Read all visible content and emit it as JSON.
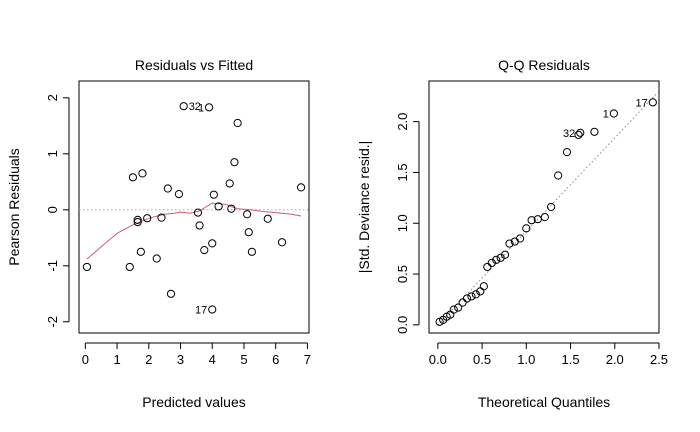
{
  "chart_data": [
    {
      "type": "scatter",
      "title": "Residuals vs Fitted",
      "xlabel": "Predicted values",
      "ylabel": "Pearson Residuals",
      "xlim": [
        -0.2,
        7.05
      ],
      "ylim": [
        -2.2,
        2.3
      ],
      "xticks": [
        0,
        1,
        2,
        3,
        4,
        5,
        6,
        7
      ],
      "yticks": [
        -2,
        -1,
        0,
        1,
        2
      ],
      "grid": false,
      "reference_line": {
        "y": 0,
        "style": "dotted",
        "color": "#aaaaaa"
      },
      "points": [
        {
          "x": 0.05,
          "y": -1.02
        },
        {
          "x": 1.4,
          "y": -1.02
        },
        {
          "x": 1.5,
          "y": 0.58
        },
        {
          "x": 1.65,
          "y": -0.18
        },
        {
          "x": 1.65,
          "y": -0.22
        },
        {
          "x": 1.75,
          "y": -0.75
        },
        {
          "x": 1.8,
          "y": 0.65
        },
        {
          "x": 1.95,
          "y": -0.15
        },
        {
          "x": 2.25,
          "y": -0.87
        },
        {
          "x": 2.4,
          "y": -0.14
        },
        {
          "x": 2.6,
          "y": 0.38
        },
        {
          "x": 2.7,
          "y": -1.5
        },
        {
          "x": 2.95,
          "y": 0.28
        },
        {
          "x": 3.1,
          "y": 1.85
        },
        {
          "x": 3.55,
          "y": -0.05
        },
        {
          "x": 3.6,
          "y": -0.28
        },
        {
          "x": 3.75,
          "y": -0.72
        },
        {
          "x": 3.9,
          "y": 1.83
        },
        {
          "x": 4.0,
          "y": -1.78
        },
        {
          "x": 4.0,
          "y": -0.6
        },
        {
          "x": 4.05,
          "y": 0.27
        },
        {
          "x": 4.2,
          "y": 0.06
        },
        {
          "x": 4.55,
          "y": 0.47
        },
        {
          "x": 4.6,
          "y": 0.02
        },
        {
          "x": 4.7,
          "y": 0.85
        },
        {
          "x": 4.8,
          "y": 1.55
        },
        {
          "x": 5.1,
          "y": -0.08
        },
        {
          "x": 5.15,
          "y": -0.4
        },
        {
          "x": 5.25,
          "y": -0.75
        },
        {
          "x": 5.75,
          "y": -0.16
        },
        {
          "x": 6.2,
          "y": -0.58
        },
        {
          "x": 6.8,
          "y": 0.4
        }
      ],
      "point_labels": [
        {
          "text": "32",
          "x": 3.1,
          "y": 1.85,
          "side": "right"
        },
        {
          "text": "1",
          "x": 3.9,
          "y": 1.83,
          "side": "left"
        },
        {
          "text": "17",
          "x": 4.0,
          "y": -1.78,
          "side": "left"
        }
      ],
      "smooth_line": {
        "color": "#d05a6e",
        "x": [
          0.05,
          0.5,
          1.0,
          1.5,
          2.0,
          2.5,
          2.8,
          3.0,
          3.3,
          3.6,
          4.0,
          4.4,
          4.8,
          5.2,
          5.6,
          6.0,
          6.5,
          6.8
        ],
        "y": [
          -0.88,
          -0.66,
          -0.42,
          -0.27,
          -0.15,
          -0.08,
          -0.06,
          -0.04,
          -0.06,
          -0.02,
          0.12,
          0.1,
          0.02,
          0.0,
          -0.03,
          -0.05,
          -0.08,
          -0.11
        ]
      }
    },
    {
      "type": "scatter",
      "title": "Q-Q Residuals",
      "xlabel": "Theoretical Quantiles",
      "ylabel": "|Std. Deviance resid.|",
      "xlim": [
        -0.1,
        2.5
      ],
      "ylim": [
        -0.08,
        2.4
      ],
      "xticks": [
        0.0,
        0.5,
        1.0,
        1.5,
        2.0,
        2.5
      ],
      "xtick_labels": [
        "0.0",
        "0.5",
        "1.0",
        "1.5",
        "2.0",
        "2.5"
      ],
      "yticks": [
        0.0,
        0.5,
        1.0,
        1.5,
        2.0
      ],
      "ytick_labels": [
        "0.0",
        "0.5",
        "1.0",
        "1.5",
        "2.0"
      ],
      "grid": false,
      "reference_line": {
        "x": [
          0.0,
          2.5
        ],
        "y": [
          0.0,
          2.3
        ],
        "style": "dotted",
        "color": "#888888"
      },
      "points": [
        {
          "x": 0.02,
          "y": 0.03
        },
        {
          "x": 0.06,
          "y": 0.05
        },
        {
          "x": 0.1,
          "y": 0.08
        },
        {
          "x": 0.14,
          "y": 0.1
        },
        {
          "x": 0.18,
          "y": 0.15
        },
        {
          "x": 0.23,
          "y": 0.17
        },
        {
          "x": 0.28,
          "y": 0.22
        },
        {
          "x": 0.33,
          "y": 0.26
        },
        {
          "x": 0.38,
          "y": 0.28
        },
        {
          "x": 0.43,
          "y": 0.3
        },
        {
          "x": 0.48,
          "y": 0.33
        },
        {
          "x": 0.52,
          "y": 0.38
        },
        {
          "x": 0.56,
          "y": 0.57
        },
        {
          "x": 0.61,
          "y": 0.61
        },
        {
          "x": 0.66,
          "y": 0.64
        },
        {
          "x": 0.71,
          "y": 0.66
        },
        {
          "x": 0.76,
          "y": 0.69
        },
        {
          "x": 0.81,
          "y": 0.8
        },
        {
          "x": 0.87,
          "y": 0.82
        },
        {
          "x": 0.93,
          "y": 0.85
        },
        {
          "x": 1.0,
          "y": 0.95
        },
        {
          "x": 1.06,
          "y": 1.03
        },
        {
          "x": 1.13,
          "y": 1.04
        },
        {
          "x": 1.21,
          "y": 1.06
        },
        {
          "x": 1.28,
          "y": 1.16
        },
        {
          "x": 1.36,
          "y": 1.47
        },
        {
          "x": 1.46,
          "y": 1.7
        },
        {
          "x": 1.59,
          "y": 1.87
        },
        {
          "x": 1.61,
          "y": 1.89
        },
        {
          "x": 1.77,
          "y": 1.9
        },
        {
          "x": 1.99,
          "y": 2.08
        },
        {
          "x": 2.43,
          "y": 2.19
        }
      ],
      "point_labels": [
        {
          "text": "17",
          "x": 2.43,
          "y": 2.19,
          "side": "left"
        },
        {
          "text": "1",
          "x": 1.99,
          "y": 2.08,
          "side": "left"
        },
        {
          "text": "32",
          "x": 1.61,
          "y": 1.89,
          "side": "left"
        }
      ]
    }
  ]
}
